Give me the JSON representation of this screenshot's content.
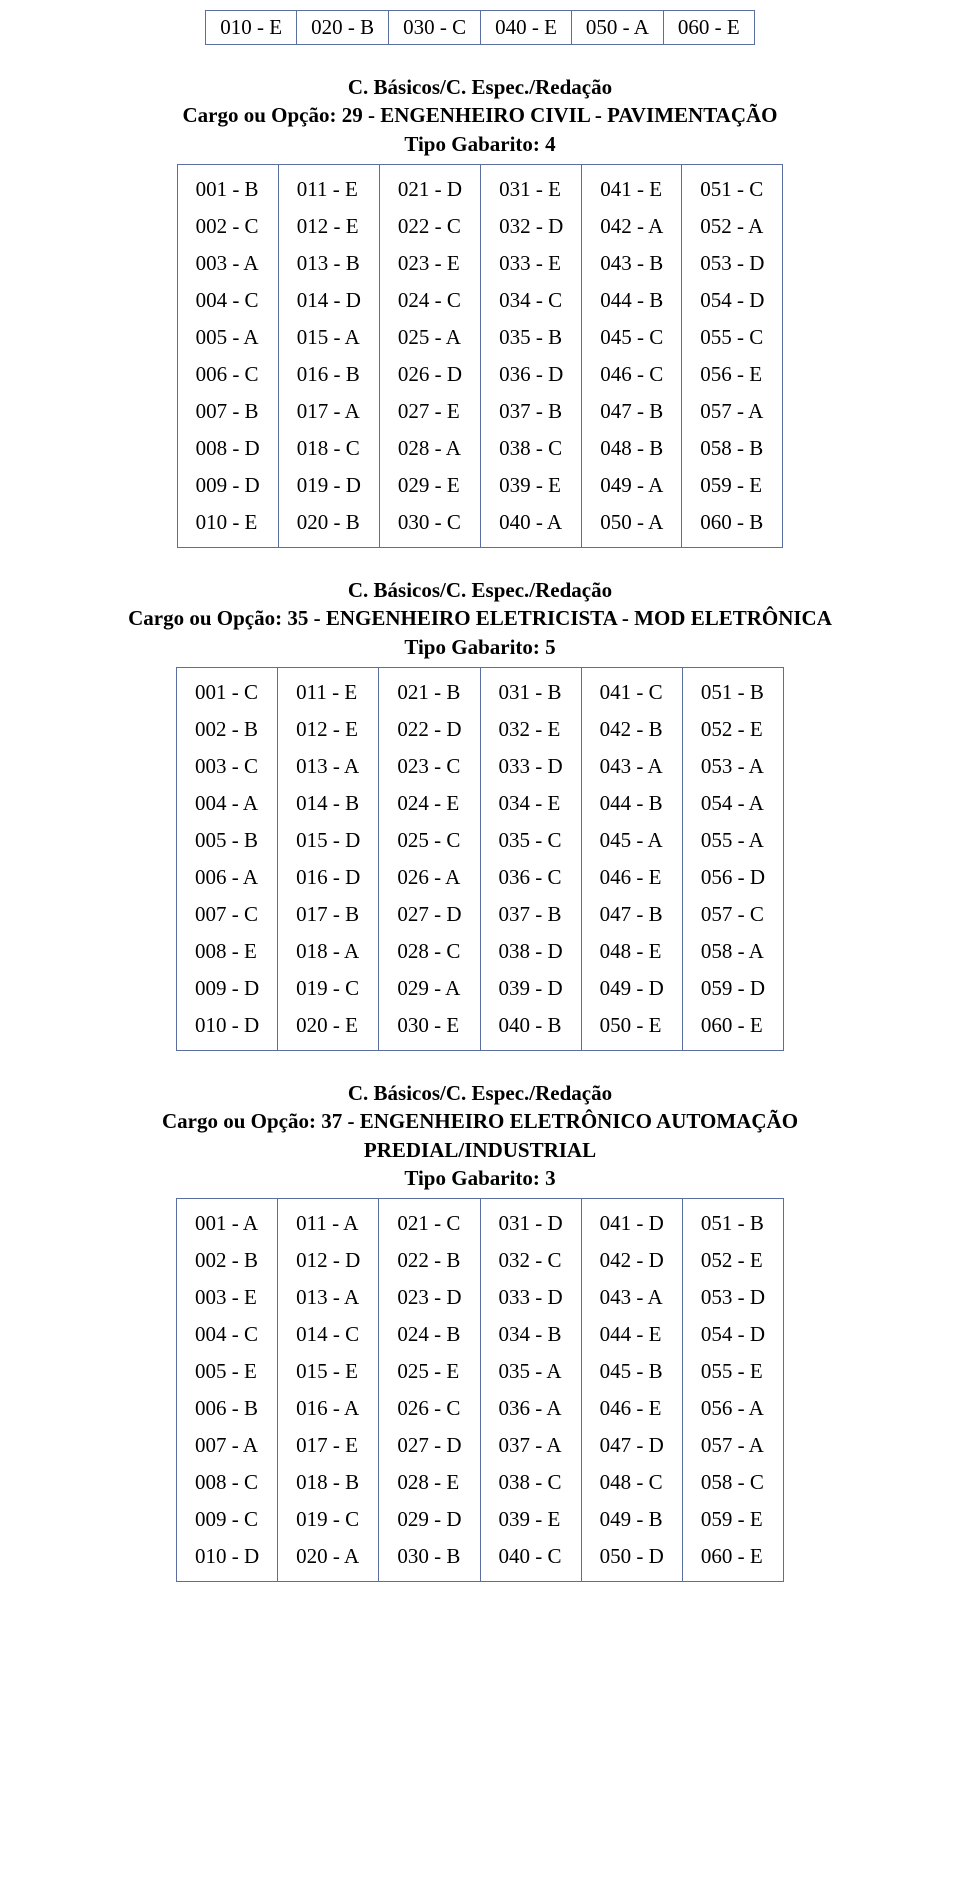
{
  "top_row": [
    "010 - E",
    "020 - B",
    "030 - C",
    "040 - E",
    "050 - A",
    "060 - E"
  ],
  "section1": {
    "line1": "C. Básicos/C. Espec./Redação",
    "line2": "Cargo ou Opção: 29 - ENGENHEIRO CIVIL - PAVIMENTAÇÃO",
    "line3": "Tipo Gabarito: 4",
    "cols": [
      [
        "001 - B",
        "002 - C",
        "003 - A",
        "004 - C",
        "005 - A",
        "006 - C",
        "007 - B",
        "008 - D",
        "009 - D",
        "010 - E"
      ],
      [
        "011 - E",
        "012 - E",
        "013 - B",
        "014 - D",
        "015 - A",
        "016 - B",
        "017 - A",
        "018 - C",
        "019 - D",
        "020 - B"
      ],
      [
        "021 - D",
        "022 - C",
        "023 - E",
        "024 - C",
        "025 - A",
        "026 - D",
        "027 - E",
        "028 - A",
        "029 - E",
        "030 - C"
      ],
      [
        "031 - E",
        "032 - D",
        "033 - E",
        "034 - C",
        "035 - B",
        "036 - D",
        "037 - B",
        "038 - C",
        "039 - E",
        "040 - A"
      ],
      [
        "041 - E",
        "042 - A",
        "043 - B",
        "044 - B",
        "045 - C",
        "046 - C",
        "047 - B",
        "048 - B",
        "049 - A",
        "050 - A"
      ],
      [
        "051 - C",
        "052 - A",
        "053 - D",
        "054 - D",
        "055 - C",
        "056 - E",
        "057 - A",
        "058 - B",
        "059 - E",
        "060 - B"
      ]
    ]
  },
  "section2": {
    "line1": "C. Básicos/C. Espec./Redação",
    "line2": "Cargo ou Opção: 35 - ENGENHEIRO ELETRICISTA - MOD ELETRÔNICA",
    "line3": "Tipo Gabarito: 5",
    "cols": [
      [
        "001 - C",
        "002 - B",
        "003 - C",
        "004 - A",
        "005 - B",
        "006 - A",
        "007 - C",
        "008 - E",
        "009 - D",
        "010 - D"
      ],
      [
        "011 - E",
        "012 - E",
        "013 - A",
        "014 - B",
        "015 - D",
        "016 - D",
        "017 - B",
        "018 - A",
        "019 - C",
        "020 - E"
      ],
      [
        "021 - B",
        "022 - D",
        "023 - C",
        "024 - E",
        "025 - C",
        "026 - A",
        "027 - D",
        "028 - C",
        "029 - A",
        "030 - E"
      ],
      [
        "031 - B",
        "032 - E",
        "033 - D",
        "034 - E",
        "035 - C",
        "036 - C",
        "037 - B",
        "038 - D",
        "039 - D",
        "040 - B"
      ],
      [
        "041 - C",
        "042 - B",
        "043 - A",
        "044 - B",
        "045 - A",
        "046 - E",
        "047 - B",
        "048 - E",
        "049 - D",
        "050 - E"
      ],
      [
        "051 - B",
        "052 - E",
        "053 - A",
        "054 - A",
        "055 - A",
        "056 - D",
        "057 - C",
        "058 - A",
        "059 - D",
        "060 - E"
      ]
    ]
  },
  "section3": {
    "line1": "C. Básicos/C. Espec./Redação",
    "line2": "Cargo ou Opção: 37 - ENGENHEIRO ELETRÔNICO AUTOMAÇÃO",
    "line3": "PREDIAL/INDUSTRIAL",
    "line4": "Tipo Gabarito: 3",
    "cols": [
      [
        "001 - A",
        "002 - B",
        "003 - E",
        "004 - C",
        "005 - E",
        "006 - B",
        "007 - A",
        "008 - C",
        "009 - C",
        "010 - D"
      ],
      [
        "011 - A",
        "012 - D",
        "013 - A",
        "014 - C",
        "015 - E",
        "016 - A",
        "017 - E",
        "018 - B",
        "019 - C",
        "020 - A"
      ],
      [
        "021 - C",
        "022 - B",
        "023 - D",
        "024 - B",
        "025 - E",
        "026 - C",
        "027 - D",
        "028 - E",
        "029 - D",
        "030 - B"
      ],
      [
        "031 - D",
        "032 - C",
        "033 - D",
        "034 - B",
        "035 - A",
        "036 - A",
        "037 - A",
        "038 - C",
        "039 - E",
        "040 - C"
      ],
      [
        "041 - D",
        "042 - D",
        "043 - A",
        "044 - E",
        "045 - B",
        "046 - E",
        "047 - D",
        "048 - C",
        "049 - B",
        "050 - D"
      ],
      [
        "051 - B",
        "052 - E",
        "053 - D",
        "054 - D",
        "055 - E",
        "056 - A",
        "057 - A",
        "058 - C",
        "059 - E",
        "060 - E"
      ]
    ]
  }
}
